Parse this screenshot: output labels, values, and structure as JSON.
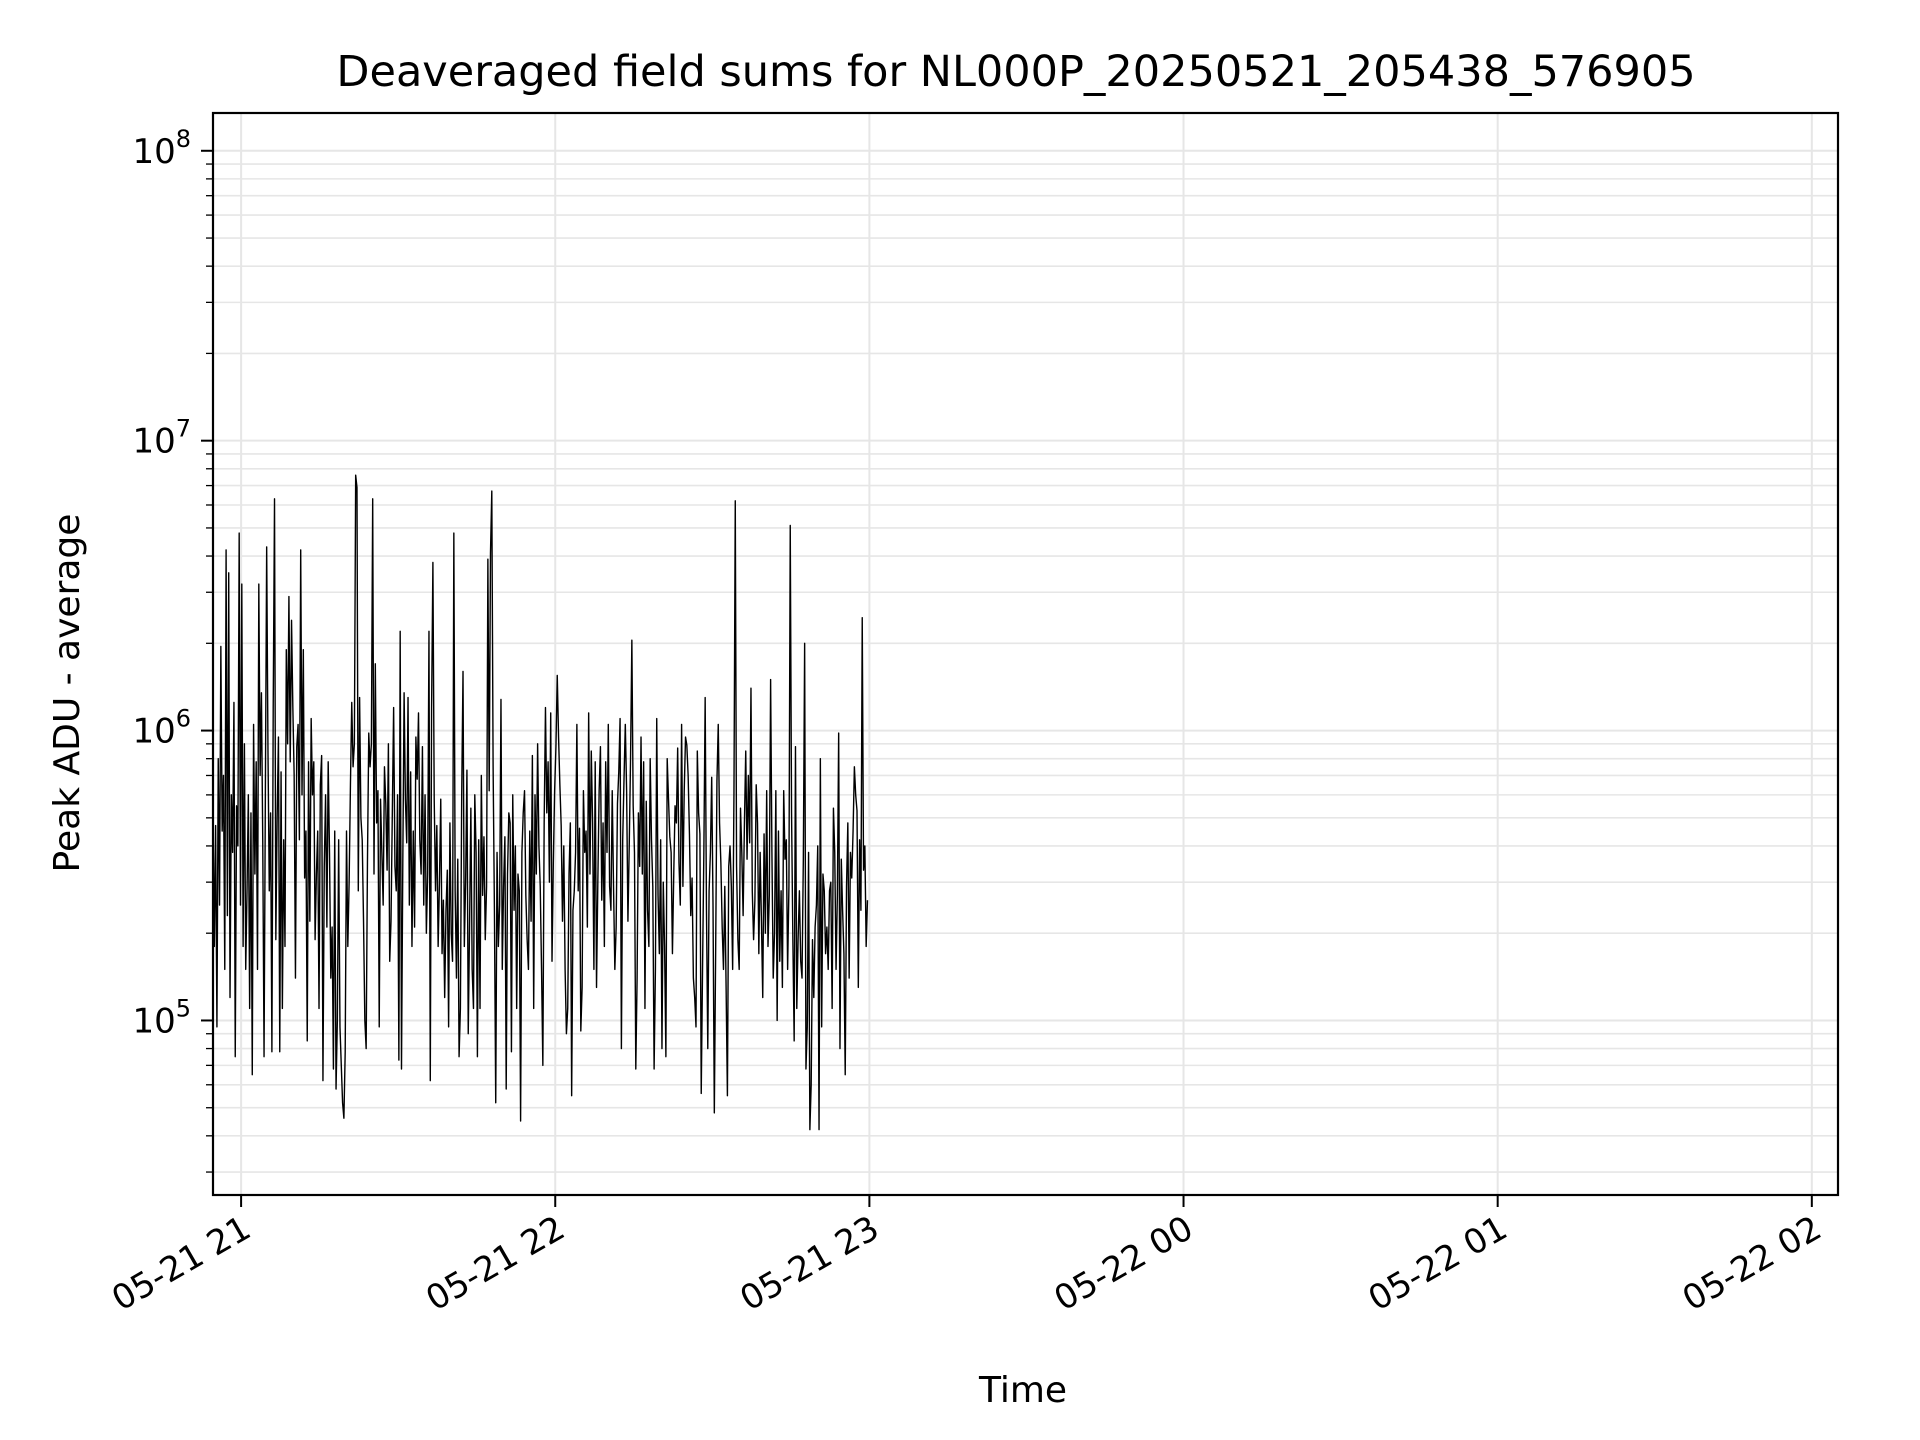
{
  "chart_data": {
    "type": "line",
    "title": "Deaveraged field sums for NL000P_20250521_205438_576905",
    "xlabel": "Time",
    "ylabel": "Peak ADU - average",
    "yscale": "log",
    "ylim": [
      25000,
      135000000
    ],
    "xlim": [
      "2025-05-21 20:54:38",
      "2025-05-22 02:05:00"
    ],
    "grid": true,
    "line_color": "#000000",
    "grid_color": "#e6e6e6",
    "y_ticks": [
      {
        "value": 100000,
        "base": "10",
        "exp": "5"
      },
      {
        "value": 1000000,
        "base": "10",
        "exp": "6"
      },
      {
        "value": 10000000,
        "base": "10",
        "exp": "7"
      },
      {
        "value": 100000000,
        "base": "10",
        "exp": "8"
      }
    ],
    "x_ticks": [
      {
        "value": "2025-05-21 21:00:00",
        "label": "05-21 21"
      },
      {
        "value": "2025-05-21 22:00:00",
        "label": "05-21 22"
      },
      {
        "value": "2025-05-21 23:00:00",
        "label": "05-21 23"
      },
      {
        "value": "2025-05-22 00:00:00",
        "label": "05-22 00"
      },
      {
        "value": "2025-05-22 01:00:00",
        "label": "05-22 01"
      },
      {
        "value": "2025-05-22 02:00:00",
        "label": "05-22 02"
      }
    ],
    "series": [
      {
        "x_start": "2025-05-21 20:54:38",
        "sample_interval_seconds": 15,
        "values": [
          520000,
          180000,
          470000,
          95000,
          800000,
          250000,
          1950000,
          450000,
          700000,
          150000,
          4200000,
          230000,
          3500000,
          120000,
          600000,
          380000,
          1250000,
          75000,
          550000,
          400000,
          4800000,
          250000,
          3200000,
          180000,
          900000,
          150000,
          280000,
          600000,
          110000,
          520000,
          65000,
          1050000,
          320000,
          780000,
          150000,
          3200000,
          700000,
          1350000,
          420000,
          75000,
          600000,
          4300000,
          850000,
          280000,
          520000,
          78000,
          1200000,
          6300000,
          190000,
          500000,
          950000,
          78000,
          720000,
          110000,
          420000,
          180000,
          1900000,
          900000,
          2900000,
          780000,
          2400000,
          1200000,
          700000,
          140000,
          880000,
          1050000,
          420000,
          4200000,
          600000,
          1900000,
          310000,
          450000,
          85000,
          780000,
          220000,
          1100000,
          600000,
          780000,
          190000,
          320000,
          450000,
          110000,
          650000,
          820000,
          62000,
          340000,
          600000,
          210000,
          780000,
          380000,
          140000,
          210000,
          68000,
          450000,
          58000,
          100000,
          420000,
          95000,
          70000,
          52000,
          46000,
          78000,
          450000,
          180000,
          300000,
          650000,
          1250000,
          750000,
          900000,
          7600000,
          6900000,
          280000,
          1300000,
          500000,
          420000,
          220000,
          100000,
          80000,
          350000,
          980000,
          750000,
          900000,
          6300000,
          320000,
          1700000,
          480000,
          620000,
          95000,
          580000,
          380000,
          250000,
          750000,
          560000,
          330000,
          900000,
          160000,
          220000,
          520000,
          1200000,
          340000,
          280000,
          600000,
          73000,
          2200000,
          68000,
          350000,
          1350000,
          580000,
          410000,
          1300000,
          250000,
          720000,
          180000,
          450000,
          210000,
          950000,
          680000,
          1150000,
          420000,
          320000,
          880000,
          250000,
          600000,
          200000,
          320000,
          2200000,
          62000,
          1200000,
          3800000,
          580000,
          280000,
          470000,
          180000,
          300000,
          580000,
          170000,
          260000,
          120000,
          240000,
          330000,
          95000,
          480000,
          200000,
          160000,
          4800000,
          280000,
          140000,
          360000,
          75000,
          110000,
          600000,
          1600000,
          180000,
          300000,
          730000,
          90000,
          210000,
          540000,
          150000,
          110000,
          600000,
          380000,
          75000,
          420000,
          110000,
          700000,
          270000,
          430000,
          190000,
          290000,
          3900000,
          620000,
          4100000,
          6700000,
          750000,
          240000,
          52000,
          380000,
          180000,
          250000,
          1280000,
          150000,
          290000,
          430000,
          58000,
          320000,
          520000,
          480000,
          78000,
          600000,
          240000,
          400000,
          110000,
          320000,
          280000,
          45000,
          380000,
          520000,
          620000,
          270000,
          190000,
          150000,
          450000,
          220000,
          820000,
          110000,
          600000,
          320000,
          900000,
          400000,
          290000,
          150000,
          70000,
          480000,
          1200000,
          520000,
          780000,
          300000,
          1150000,
          160000,
          350000,
          620000,
          880000,
          1550000,
          950000,
          650000,
          470000,
          220000,
          400000,
          150000,
          90000,
          110000,
          320000,
          480000,
          55000,
          240000,
          280000,
          380000,
          1050000,
          280000,
          460000,
          92000,
          130000,
          620000,
          380000,
          450000,
          210000,
          1150000,
          320000,
          850000,
          480000,
          150000,
          780000,
          130000,
          300000,
          620000,
          880000,
          260000,
          480000,
          180000,
          780000,
          380000,
          1050000,
          290000,
          240000,
          620000,
          290000,
          150000,
          210000,
          560000,
          720000,
          1100000,
          80000,
          420000,
          680000,
          1050000,
          620000,
          220000,
          400000,
          800000,
          2050000,
          550000,
          380000,
          68000,
          140000,
          520000,
          340000,
          950000,
          320000,
          780000,
          110000,
          570000,
          240000,
          180000,
          800000,
          420000,
          290000,
          68000,
          150000,
          1100000,
          270000,
          170000,
          420000,
          80000,
          300000,
          180000,
          75000,
          800000,
          580000,
          430000,
          380000,
          170000,
          320000,
          550000,
          480000,
          870000,
          350000,
          250000,
          1050000,
          290000,
          620000,
          950000,
          890000,
          700000,
          440000,
          230000,
          310000,
          140000,
          120000,
          95000,
          850000,
          520000,
          440000,
          56000,
          150000,
          380000,
          1300000,
          240000,
          80000,
          280000,
          380000,
          690000,
          250000,
          48000,
          170000,
          670000,
          1050000,
          480000,
          350000,
          210000,
          150000,
          290000,
          130000,
          55000,
          340000,
          400000,
          290000,
          150000,
          610000,
          6200000,
          340000,
          190000,
          150000,
          540000,
          380000,
          230000,
          480000,
          850000,
          360000,
          700000,
          410000,
          1400000,
          280000,
          190000,
          260000,
          650000,
          480000,
          170000,
          380000,
          220000,
          120000,
          440000,
          200000,
          620000,
          180000,
          270000,
          1500000,
          380000,
          140000,
          200000,
          620000,
          100000,
          450000,
          160000,
          280000,
          130000,
          620000,
          360000,
          420000,
          150000,
          290000,
          5100000,
          520000,
          190000,
          85000,
          880000,
          110000,
          190000,
          280000,
          160000,
          140000,
          360000,
          2000000,
          68000,
          95000,
          380000,
          42000,
          60000,
          190000,
          120000,
          210000,
          250000,
          400000,
          42000,
          800000,
          95000,
          320000,
          280000,
          170000,
          210000,
          150000,
          280000,
          300000,
          110000,
          540000,
          380000,
          150000,
          270000,
          980000,
          80000,
          360000,
          240000,
          170000,
          65000,
          290000,
          480000,
          140000,
          380000,
          310000,
          450000,
          750000,
          600000,
          530000,
          130000,
          420000,
          240000,
          2450000,
          330000,
          400000,
          180000,
          260000
        ]
      }
    ]
  }
}
